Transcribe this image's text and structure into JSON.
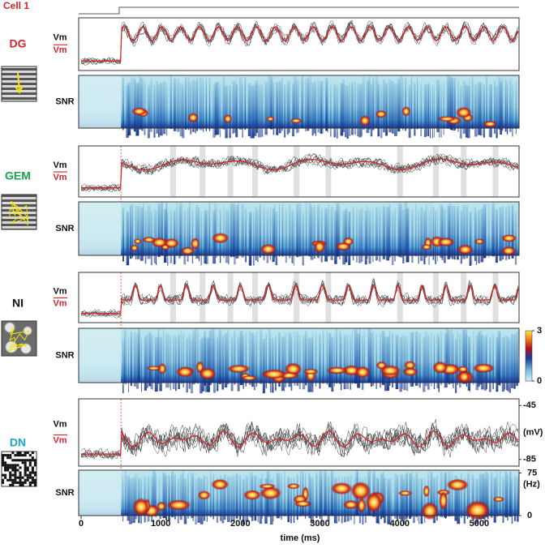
{
  "title": "Cell 1",
  "x_axis": {
    "xlim": [
      0,
      5500
    ],
    "xticks": [
      0,
      1000,
      2000,
      3000,
      4000,
      5000
    ],
    "label": "time (ms)"
  },
  "vm_axis": {
    "ylim": [
      -90,
      -40
    ],
    "yticks": [
      -85,
      -45
    ],
    "unit": "(mV)"
  },
  "freq_axis": {
    "ylim": [
      0,
      80
    ],
    "yticks": [
      0,
      75
    ],
    "unit": "(Hz)"
  },
  "colorbar": {
    "ylim": [
      0,
      3
    ],
    "yticks": [
      0,
      3
    ]
  },
  "trace_labels": {
    "vm": "Vm",
    "vm_mean": "Vm",
    "snr": "SNR"
  },
  "conditions": [
    {
      "name": "DG",
      "color": "#d7262b"
    },
    {
      "name": "GEM",
      "color": "#1aa34a"
    },
    {
      "name": "NI",
      "color": "#111111"
    },
    {
      "name": "DN",
      "color": "#1ba3d6"
    }
  ]
}
